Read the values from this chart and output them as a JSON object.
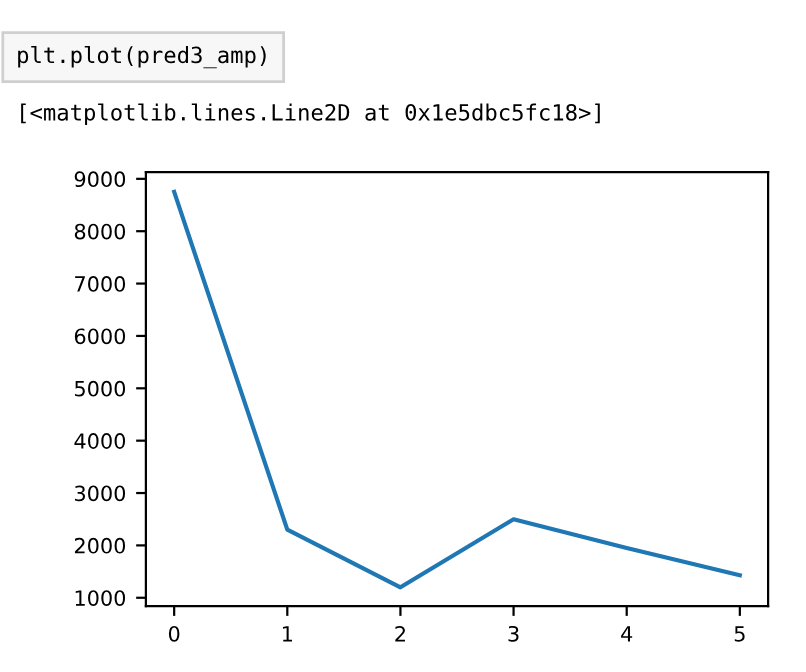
{
  "chart_data": {
    "type": "line",
    "x": [
      0,
      1,
      2,
      3,
      4,
      5
    ],
    "series": [
      {
        "color": "#1f77b4",
        "values": [
          8750,
          2300,
          1200,
          2500,
          1950,
          1430
        ]
      }
    ],
    "xlim": [
      -0.25,
      5.25
    ],
    "xticks": [
      0,
      1,
      2,
      3,
      4,
      5
    ],
    "ylim": [
      840,
      9130
    ],
    "yticks": [
      1000,
      2000,
      3000,
      4000,
      5000,
      6000,
      7000,
      8000,
      9000
    ],
    "annotations": [
      "plt.plot(pred3_amp)",
      "[<matplotlib.lines.Line2D at 0x1e5dbc5fc18>]"
    ]
  }
}
